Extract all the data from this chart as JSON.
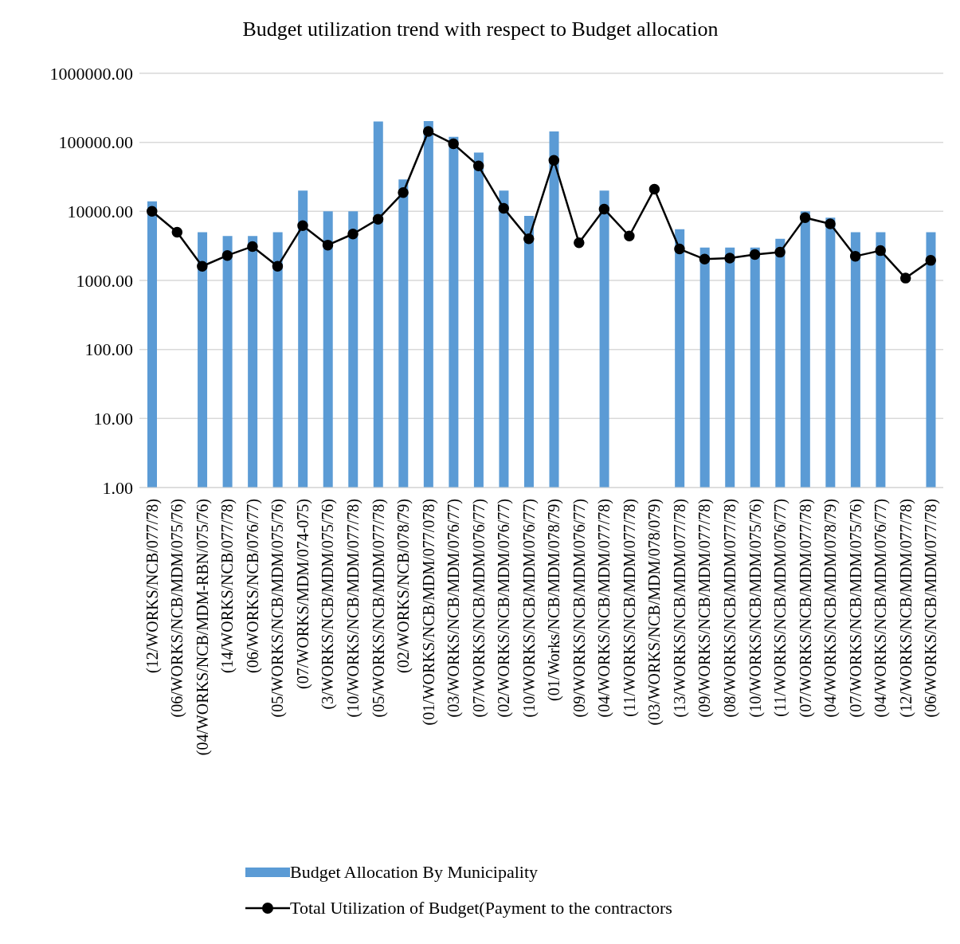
{
  "chart_data": {
    "type": "bar",
    "title": "Budget utilization trend with respect to Budget allocation",
    "categories": [
      "(12/WORKS/NCB/077/78)",
      "(06/WORKS/NCB/MDM/075/76)",
      "(04/WORKS/NCB/MDM-RBN/075/76)",
      "(14/WORKS/NCB/077/78)",
      "(06/WORKS/NCB/076/77)",
      "(05/WORKS/NCB/MDM/075/76)",
      "(07/WORKS/MDM/074-075)",
      "(3/WORKS/NCB/MDM/075/76)",
      "(10/WORKS/NCB/MDM/077/78)",
      "(05/WORKS/NCB/MDM/077/78)",
      "(02/WORKS/NCB/078/79)",
      "(01/WORKS/NCB/MDM/077/078)",
      "(03/WORKS/NCB/MDM/076/77)",
      "(07/WORKS/NCB/MDM/076/77)",
      "(02/WORKS/NCB/MDM/076/77)",
      "(10/WORKS/NCB/MDM/076/77)",
      "(01/Works/NCB/MDM/078/79)",
      "(09/WORKS/NCB/MDM/076/77)",
      "(04/WORKS/NCB/MDM/077/78)",
      "(11/WORKS/NCB/MDM/077/78)",
      "(03/WORKS/NCB/MDM/078/079)",
      "(13/WORKS/NCB/MDM/077/78)",
      "(09/WORKS/NCB/MDM/077/78)",
      "(08/WORKS/NCB/MDM/077/78)",
      "(10/WORKS/NCB/MDM/075/76)",
      "(11/WORKS/NCB/MDM/076/77)",
      "(07/WORKS/NCB/MDM/077/78)",
      "(04/WORKS/NCB/MDM/078/79)",
      "(07/WORKS/NCB/MDM/075/76)",
      "(04/WORKS/NCB/MDM/076/77)",
      "(12/WORKS/NCB/MDM/077/78)",
      "(06/WORKS/NCB/MDM/077/78)"
    ],
    "series": [
      {
        "name": "Budget Allocation By Municipality",
        "color": "#5b9bd5",
        "values": [
          14000,
          null,
          5000,
          4400,
          4400,
          5000,
          20000,
          10000,
          10000,
          200000,
          29000,
          203000,
          120000,
          71000,
          20000,
          8600,
          144000,
          null,
          20000,
          null,
          null,
          5500,
          3000,
          3000,
          3000,
          4000,
          10000,
          8100,
          5000,
          5000,
          null,
          5000
        ]
      },
      {
        "name": "Total Utilization of Budget(Payment to the contractors",
        "type": "line",
        "color": "#000000",
        "marker": "circle",
        "values": [
          10000,
          5000,
          1600,
          2300,
          3100,
          1600,
          6200,
          3250,
          4700,
          7700,
          18700,
          144000,
          95000,
          45500,
          11100,
          4000,
          55000,
          3500,
          10800,
          4400,
          21000,
          2850,
          2030,
          2100,
          2370,
          2560,
          8100,
          6600,
          2240,
          2700,
          1080,
          1950
        ]
      }
    ],
    "log": "y",
    "ylim": [
      1,
      1000000
    ],
    "yticks": [
      {
        "value": 1,
        "label": "1.00"
      },
      {
        "value": 10,
        "label": "10.00"
      },
      {
        "value": 100,
        "label": "100.00"
      },
      {
        "value": 1000,
        "label": "1000.00"
      },
      {
        "value": 10000,
        "label": "10000.00"
      },
      {
        "value": 100000,
        "label": "100000.00"
      },
      {
        "value": 1000000,
        "label": "1000000.00"
      }
    ],
    "grid": "y",
    "legend": "bottom"
  }
}
